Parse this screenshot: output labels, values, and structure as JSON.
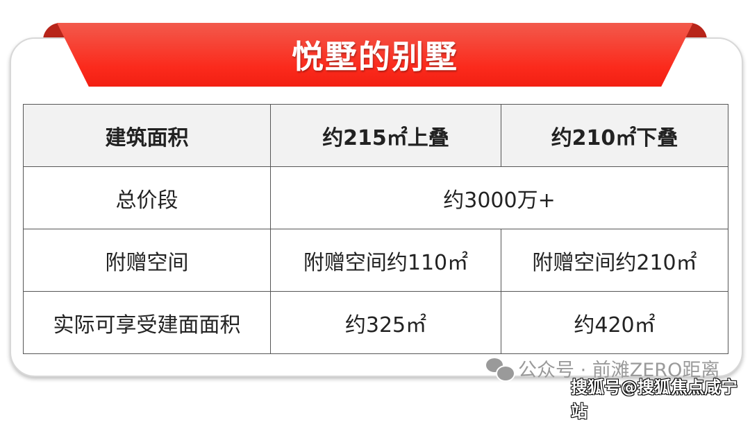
{
  "title": "悦墅的别墅",
  "table": {
    "header": [
      "建筑面积",
      "约215㎡上叠",
      "约210㎡下叠"
    ],
    "rows": [
      [
        "总价段",
        "约3000万+"
      ],
      [
        "附赠空间",
        "附赠空间约110㎡",
        "附赠空间约210㎡"
      ],
      [
        "实际可享受建面面积",
        "约325㎡",
        "约420㎡"
      ]
    ]
  },
  "watermarks": {
    "wechat_icon": "wechat-icon",
    "account": "公众号 · 前滩ZERO距离",
    "sohu": "搜狐号@搜狐焦点咸宁站"
  },
  "colors": {
    "ribbon": "#fb2a1c",
    "header_bg": "#f2f2f2"
  }
}
